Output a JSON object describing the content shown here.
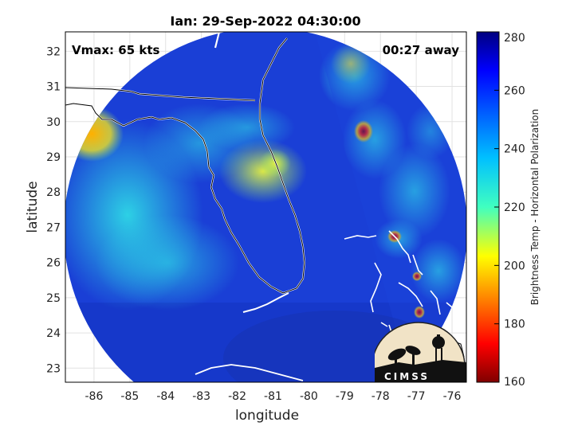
{
  "title": "Ian: 29-Sep-2022 04:30:00",
  "annotations": {
    "vmax": "Vmax: 65 kts",
    "time_away": "00:27 away"
  },
  "axes": {
    "xlabel": "longitude",
    "ylabel": "latitude",
    "xlim": [
      -86.8,
      -75.6
    ],
    "ylim": [
      22.6,
      32.55
    ],
    "xticks": [
      "-86",
      "-85",
      "-84",
      "-83",
      "-82",
      "-81",
      "-80",
      "-79",
      "-78",
      "-77",
      "-76"
    ],
    "yticks": [
      "32",
      "31",
      "30",
      "29",
      "28",
      "27",
      "26",
      "25",
      "24",
      "23"
    ],
    "grid": true
  },
  "colorbar": {
    "label": "Brightness Temp - Horizontal Polarization",
    "range": [
      160,
      280
    ],
    "ticks": [
      "280",
      "260",
      "240",
      "220",
      "200",
      "180",
      "160"
    ],
    "colormap": "jet"
  },
  "logo": {
    "text": "CIMSS"
  },
  "colors": {
    "background_field": "#1a3fd6",
    "cold_core": "#8b0000",
    "warm_field": "#20c8e8",
    "coastline": "#ffffff"
  }
}
